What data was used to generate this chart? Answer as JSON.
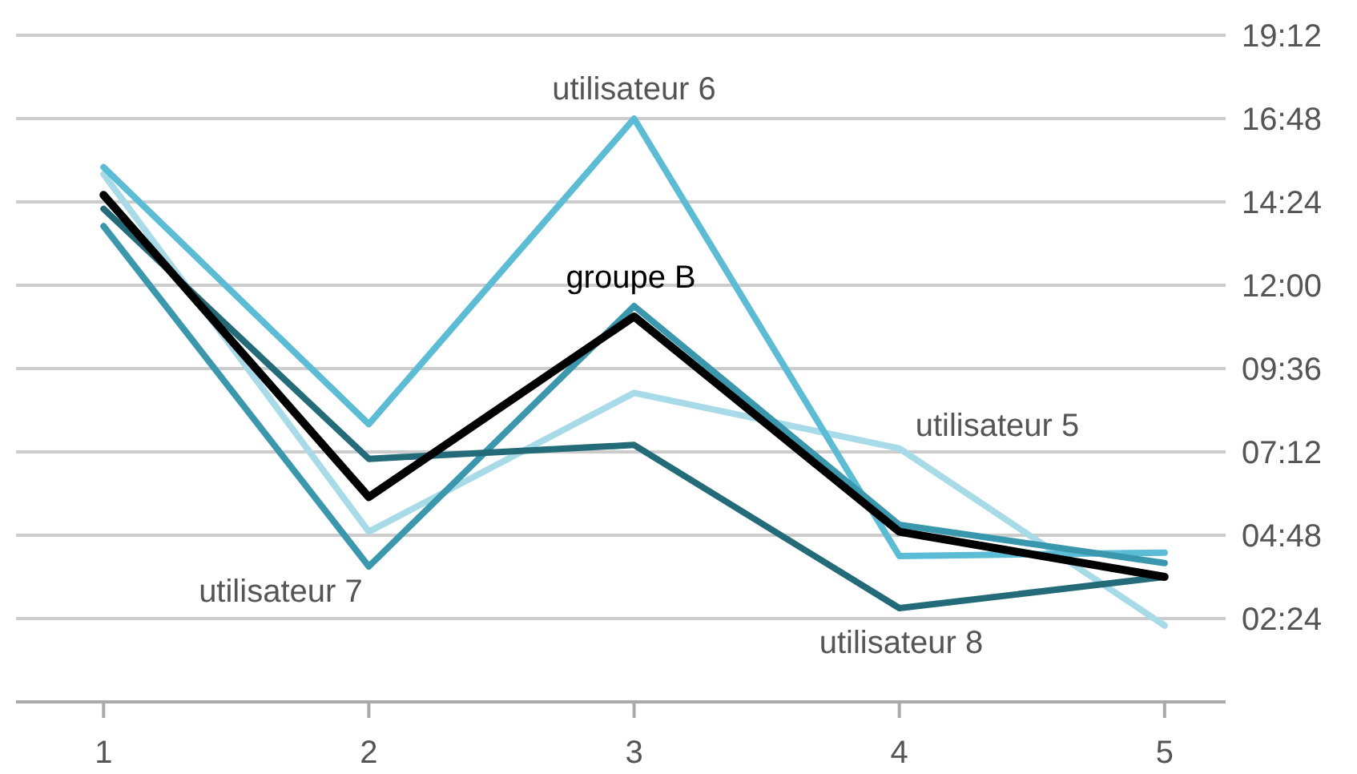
{
  "chart_data": {
    "type": "line",
    "x": [
      1,
      2,
      3,
      4,
      5
    ],
    "xlim": [
      0.67,
      5.23
    ],
    "xticks": [
      1,
      2,
      3,
      4,
      5
    ],
    "ylim": [
      0,
      19.2
    ],
    "yticks": [
      {
        "value": 2.4,
        "label": "02:24"
      },
      {
        "value": 4.8,
        "label": "04:48"
      },
      {
        "value": 7.2,
        "label": "07:12"
      },
      {
        "value": 9.6,
        "label": "09:36"
      },
      {
        "value": 12,
        "label": "12:00"
      },
      {
        "value": 14.4,
        "label": "14:24"
      },
      {
        "value": 16.8,
        "label": "16:48"
      },
      {
        "value": 19.2,
        "label": "19:12"
      }
    ],
    "grid": "y",
    "legend": false,
    "marker": "none",
    "line_style": "solid",
    "series": [
      {
        "name": "utilisateur 5",
        "color": "#a8dbe8",
        "values": [
          15.2,
          4.9,
          8.9,
          7.3,
          2.2
        ]
      },
      {
        "name": "utilisateur 6",
        "color": "#5bbcd6",
        "values": [
          15.4,
          8.0,
          16.8,
          4.2,
          4.3
        ]
      },
      {
        "name": "utilisateur 7",
        "color": "#3a98ae",
        "values": [
          13.7,
          3.9,
          11.4,
          5.1,
          4.0
        ]
      },
      {
        "name": "utilisateur 8",
        "color": "#246b7a",
        "values": [
          14.2,
          7.0,
          7.4,
          2.7,
          3.6
        ]
      },
      {
        "name": "groupe B",
        "color": "#000000",
        "values": [
          14.6,
          5.9,
          11.1,
          4.9,
          3.6
        ]
      }
    ]
  }
}
